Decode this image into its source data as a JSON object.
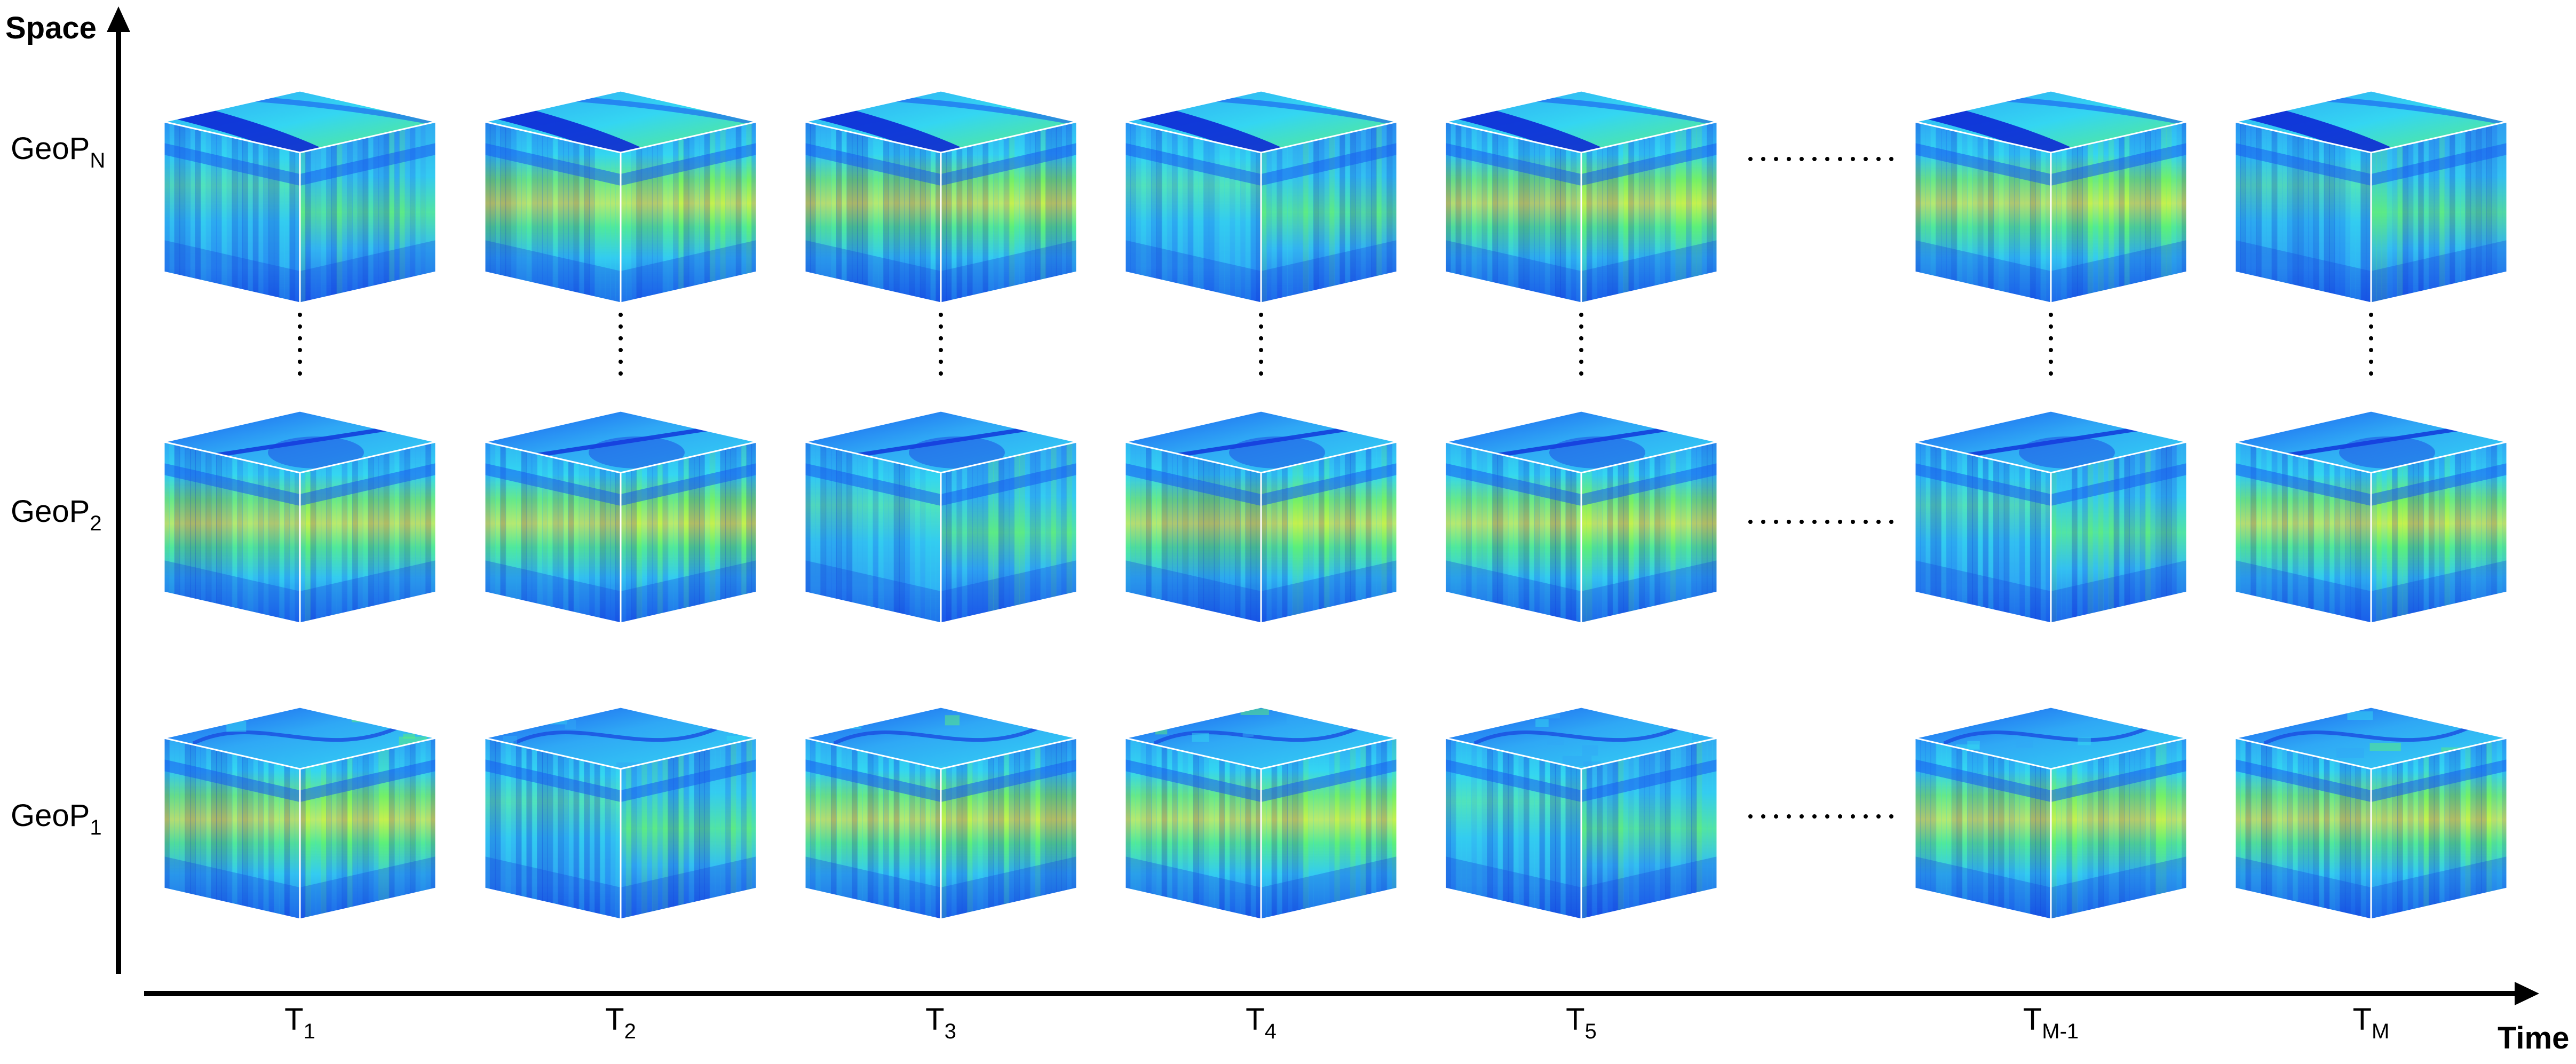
{
  "axes": {
    "y_title": "Space",
    "x_title": "Time"
  },
  "rows": [
    {
      "base": "GeoP",
      "sub": "N"
    },
    {
      "base": "GeoP",
      "sub": "2"
    },
    {
      "base": "GeoP",
      "sub": "1"
    }
  ],
  "columns": [
    {
      "base": "T",
      "sub": "1"
    },
    {
      "base": "T",
      "sub": "2"
    },
    {
      "base": "T",
      "sub": "3"
    },
    {
      "base": "T",
      "sub": "4"
    },
    {
      "base": "T",
      "sub": "5"
    },
    {
      "base": "T",
      "sub": "M-1"
    },
    {
      "base": "T",
      "sub": "M"
    }
  ],
  "colors": {
    "deep_blue": "#0a1fd4",
    "blue": "#1a5cf0",
    "light_blue": "#2fa8f5",
    "cyan": "#2fe0f0",
    "green": "#5cf07a",
    "yellow": "#e8f040",
    "edge": "#ffffff",
    "axis": "#000000"
  }
}
